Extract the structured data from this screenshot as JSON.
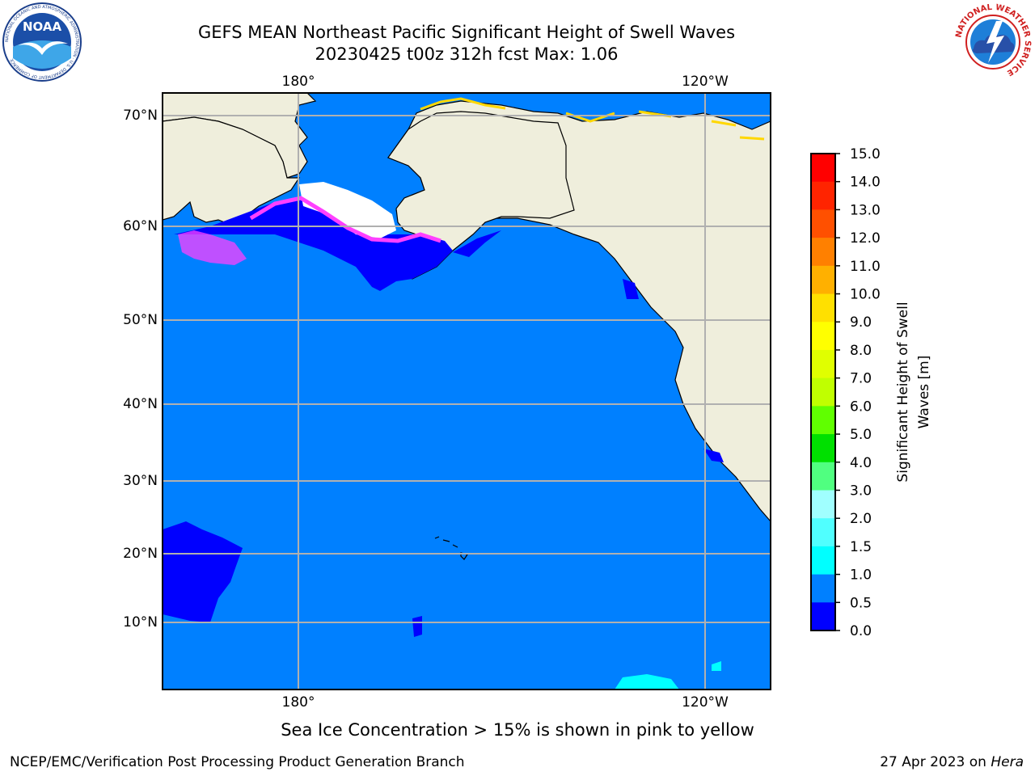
{
  "title": {
    "line1": "GEFS MEAN Northeast Pacific Significant Height of Swell Waves",
    "line2": "20230425 t00z 312h fcst   Max: 1.06"
  },
  "logos": {
    "noaa": {
      "text": "NOAA",
      "ring_text": "NATIONAL OCEANIC AND ATMOSPHERIC ADMINISTRATION · U.S. DEPARTMENT OF COMMERCE"
    },
    "nws": {
      "ring_text": "NATIONAL WEATHER SERVICE"
    }
  },
  "map": {
    "lat_labels": [
      "70°N",
      "60°N",
      "50°N",
      "40°N",
      "30°N",
      "20°N",
      "10°N"
    ],
    "lon_labels": [
      "180°",
      "120°W"
    ],
    "colors": {
      "land": "#efeedc",
      "ocean": "#0080ff",
      "low": "#0000ff",
      "ice_pink": "#ff40ff",
      "ice_yellow": "#ffd700",
      "cyan": "#00ffff",
      "grid": "#b0b0b0"
    }
  },
  "colorbar": {
    "label_line1": "Significant Height of Swell",
    "label_line2": "Waves [m]",
    "ticks": [
      "15.0",
      "14.0",
      "13.0",
      "12.0",
      "11.0",
      "10.0",
      "9.0",
      "8.0",
      "7.0",
      "6.0",
      "5.0",
      "4.0",
      "3.0",
      "2.0",
      "1.5",
      "1.0",
      "0.5",
      "0.0"
    ],
    "colors": [
      "#ff0000",
      "#ff2400",
      "#ff5000",
      "#ff8000",
      "#ffb000",
      "#ffe000",
      "#ffff00",
      "#e0ff00",
      "#c0ff00",
      "#60ff00",
      "#00e000",
      "#50ff80",
      "#a0ffff",
      "#50ffff",
      "#00ffff",
      "#0080ff",
      "#0000ff"
    ]
  },
  "footer": {
    "ice_note": "Sea Ice Concentration > 15% is shown in pink to yellow",
    "left": "NCEP/EMC/Verification Post Processing Product Generation Branch",
    "right_date": "27 Apr 2023 on ",
    "right_machine": "Hera"
  }
}
